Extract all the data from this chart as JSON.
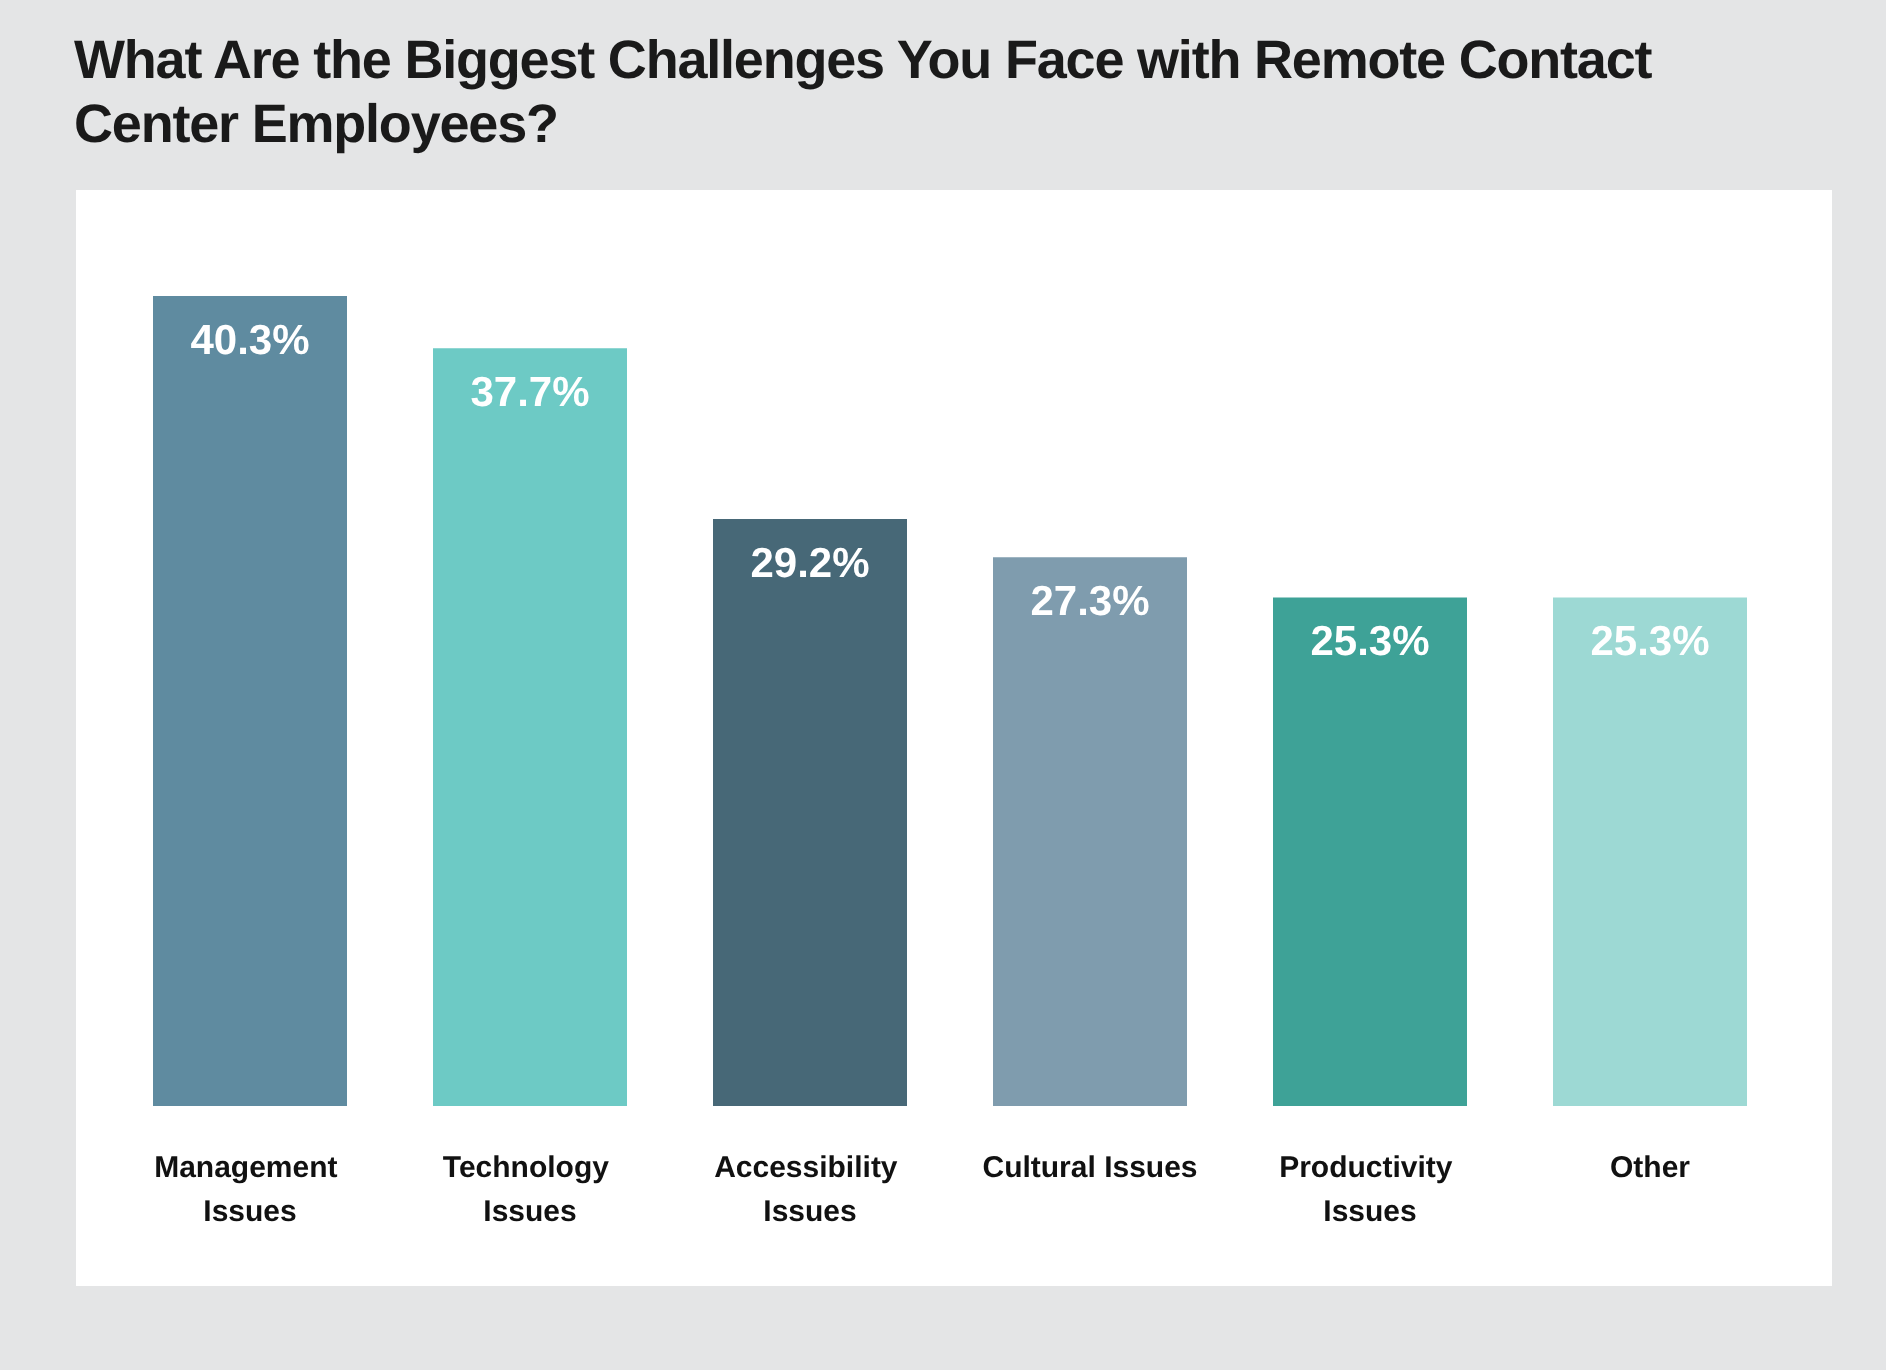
{
  "chart_data": {
    "type": "bar",
    "title": "What Are the Biggest Challenges You Face with Remote Contact Center Employees?",
    "categories": [
      "Management Issues",
      "Technology Issues",
      "Accessibility Issues",
      "Cultural Issues",
      "Productivity Issues",
      "Other"
    ],
    "values": [
      40.3,
      37.7,
      29.2,
      27.3,
      25.3,
      25.3
    ],
    "value_labels": [
      "40.3%",
      "37.7%",
      "29.2%",
      "27.3%",
      "25.3%",
      "25.3%"
    ],
    "colors": [
      "#5f8ba0",
      "#6dcac5",
      "#476877",
      "#7f9cae",
      "#3ea297",
      "#9dd9d4"
    ]
  }
}
